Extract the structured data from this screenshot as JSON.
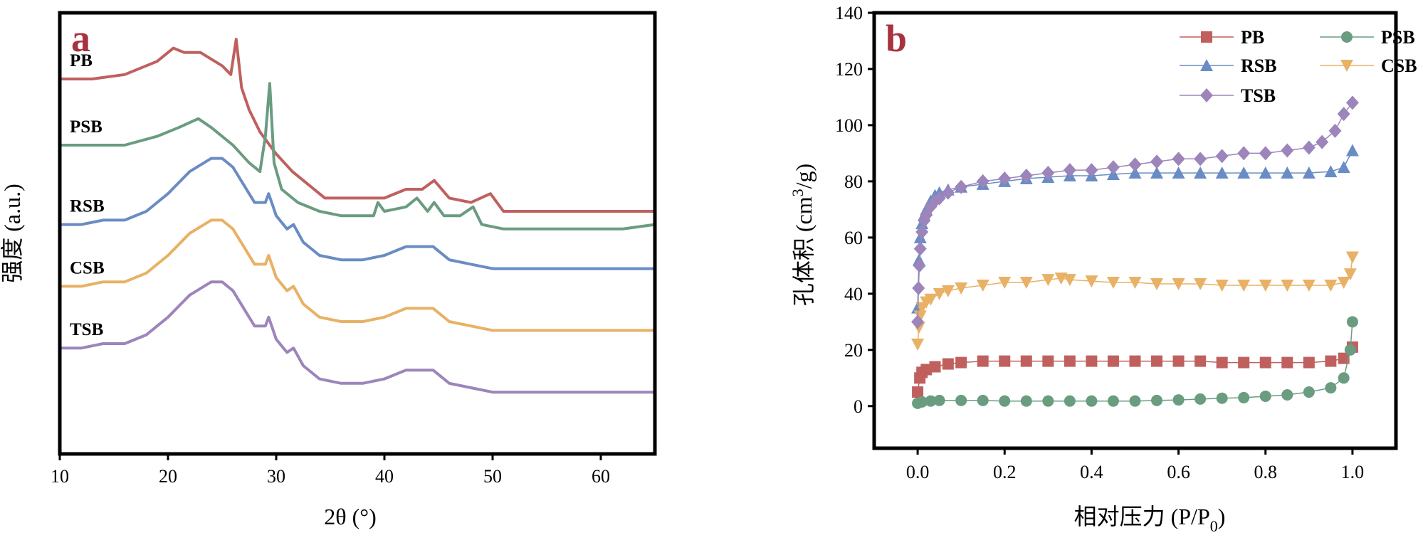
{
  "chart_data": [
    {
      "panel": "a",
      "type": "line",
      "xlabel": "2θ (°)",
      "ylabel": "强度 (a.u.)",
      "xlim": [
        10,
        65
      ],
      "x_ticks": [
        10,
        20,
        30,
        40,
        50,
        60
      ],
      "y_ticks_shown": false,
      "legend": "none",
      "note_values": "y values are relative intensity (arbitrary units), stacked by series with offsets",
      "series": [
        {
          "name": "PB",
          "color": "#c0605e",
          "x": [
            10,
            13,
            16,
            19,
            20.5,
            21.5,
            23,
            25,
            25.8,
            26.3,
            26.8,
            27.5,
            28.5,
            30,
            31.5,
            33,
            34.5,
            36,
            38,
            40,
            42,
            43.5,
            44.6,
            46,
            48,
            49.8,
            51,
            54,
            58,
            62,
            65
          ],
          "y": [
            85,
            85,
            86,
            89,
            92,
            91,
            91,
            88,
            86,
            94,
            83,
            78,
            73,
            68,
            64,
            61,
            58,
            58,
            58,
            58,
            60,
            60,
            62,
            58,
            57,
            59,
            55,
            55,
            55,
            55,
            55
          ]
        },
        {
          "name": "PSB",
          "color": "#6a9c80",
          "x": [
            10,
            13,
            16,
            19,
            21,
            22.8,
            24,
            26,
            27.5,
            28.5,
            29,
            29.4,
            29.8,
            30.5,
            32,
            34,
            36,
            37,
            39,
            39.4,
            40,
            42,
            43,
            44,
            44.6,
            45.5,
            47,
            48.2,
            49,
            51,
            55,
            58,
            62,
            65
          ],
          "y": [
            70,
            70,
            70,
            72,
            74,
            76,
            74,
            70,
            66,
            64,
            72,
            84,
            66,
            60,
            57,
            55,
            54,
            54,
            54,
            57,
            55,
            56,
            58,
            55,
            57,
            54,
            54,
            56,
            52,
            51,
            51,
            51,
            51,
            52
          ]
        },
        {
          "name": "RSB",
          "color": "#6a8cc4",
          "x": [
            10,
            12,
            14,
            16,
            18,
            20,
            22,
            24,
            25,
            26,
            27,
            28,
            29,
            29.3,
            30,
            31,
            31.6,
            32.5,
            34,
            36,
            38,
            40,
            42,
            43,
            44.5,
            46,
            48,
            50,
            53,
            56,
            60,
            65
          ],
          "y": [
            52,
            52,
            53,
            53,
            55,
            59,
            64,
            67,
            67,
            65,
            61,
            57,
            57,
            59,
            54,
            51,
            52,
            48,
            45,
            44,
            44,
            45,
            47,
            47,
            47,
            44,
            43,
            42,
            42,
            42,
            42,
            42
          ]
        },
        {
          "name": "CSB",
          "color": "#e8b165",
          "x": [
            10,
            12,
            14,
            16,
            18,
            20,
            22,
            24,
            25,
            26,
            27,
            28,
            29,
            29.3,
            30,
            31,
            31.6,
            32.5,
            34,
            36,
            38,
            40,
            42,
            43,
            44.5,
            46,
            48,
            50,
            53,
            56,
            60,
            65
          ],
          "y": [
            38,
            38,
            39,
            39,
            41,
            45,
            50,
            53,
            53,
            51,
            47,
            43,
            43,
            45,
            40,
            37,
            38,
            34,
            31,
            30,
            30,
            31,
            33,
            33,
            33,
            30,
            29,
            28,
            28,
            28,
            28,
            28
          ]
        },
        {
          "name": "TSB",
          "color": "#9c85ba",
          "x": [
            10,
            12,
            14,
            16,
            18,
            20,
            22,
            24,
            25,
            26,
            27,
            28,
            29,
            29.3,
            30,
            31,
            31.6,
            32.5,
            34,
            36,
            38,
            40,
            42,
            43,
            44.5,
            46,
            48,
            50,
            53,
            56,
            60,
            65
          ],
          "y": [
            24,
            24,
            25,
            25,
            27,
            31,
            36,
            39,
            39,
            37,
            33,
            29,
            29,
            31,
            26,
            23,
            24,
            20,
            17,
            16,
            16,
            17,
            19,
            19,
            19,
            16,
            15,
            14,
            14,
            14,
            14,
            14
          ]
        }
      ]
    },
    {
      "panel": "b",
      "type": "line",
      "xlabel": "相对压力 (P/P",
      "xlabel_sub": "0",
      "xlabel_tail": ")",
      "ylabel": "孔体积 (cm",
      "ylabel_sup": "3",
      "ylabel_tail": "/g)",
      "xlim": [
        -0.1,
        1.1
      ],
      "ylim": [
        -15,
        140
      ],
      "x_ticks": [
        "0.0",
        "0.2",
        "0.4",
        "0.6",
        "0.8",
        "1.0"
      ],
      "y_ticks": [
        0,
        20,
        40,
        60,
        80,
        100,
        120,
        140
      ],
      "legend": "top-right",
      "series": [
        {
          "name": "PB",
          "color": "#c0605e",
          "marker": "square",
          "x": [
            0.0,
            0.005,
            0.01,
            0.02,
            0.04,
            0.07,
            0.1,
            0.15,
            0.2,
            0.25,
            0.3,
            0.35,
            0.4,
            0.45,
            0.5,
            0.55,
            0.6,
            0.65,
            0.7,
            0.75,
            0.8,
            0.85,
            0.9,
            0.95,
            0.98,
            1.0
          ],
          "y": [
            5,
            10,
            12,
            13,
            14,
            15,
            15.5,
            16,
            16,
            16,
            16,
            16,
            16,
            16,
            16,
            16,
            16,
            16,
            15.5,
            15.5,
            15.5,
            15.5,
            15.5,
            16,
            17,
            21
          ]
        },
        {
          "name": "PSB",
          "color": "#6a9c80",
          "marker": "circle",
          "x": [
            0.0,
            0.01,
            0.03,
            0.05,
            0.1,
            0.15,
            0.2,
            0.25,
            0.3,
            0.35,
            0.4,
            0.45,
            0.5,
            0.55,
            0.6,
            0.65,
            0.7,
            0.75,
            0.8,
            0.85,
            0.9,
            0.95,
            0.98,
            0.995,
            1.0
          ],
          "y": [
            1,
            1.5,
            1.8,
            2,
            2,
            2,
            1.8,
            1.8,
            1.8,
            1.8,
            1.8,
            1.8,
            1.8,
            2,
            2.2,
            2.5,
            2.8,
            3,
            3.5,
            4,
            5,
            6.5,
            10,
            20,
            30
          ]
        },
        {
          "name": "RSB",
          "color": "#6a8cc4",
          "marker": "triangle-up",
          "x": [
            0.0,
            0.003,
            0.006,
            0.01,
            0.015,
            0.02,
            0.03,
            0.04,
            0.05,
            0.07,
            0.1,
            0.15,
            0.2,
            0.25,
            0.3,
            0.35,
            0.4,
            0.45,
            0.5,
            0.55,
            0.6,
            0.65,
            0.7,
            0.75,
            0.8,
            0.85,
            0.9,
            0.95,
            0.98,
            1.0
          ],
          "y": [
            35,
            52,
            60,
            65,
            68,
            70,
            73,
            75,
            76,
            77,
            78,
            79,
            80,
            81,
            81.5,
            82,
            82,
            82.5,
            83,
            83,
            83,
            83,
            83,
            83,
            83,
            83,
            83,
            83.5,
            85,
            91
          ]
        },
        {
          "name": "CSB",
          "color": "#e8b165",
          "marker": "triangle-down",
          "x": [
            0.0,
            0.003,
            0.006,
            0.01,
            0.02,
            0.03,
            0.05,
            0.07,
            0.1,
            0.15,
            0.2,
            0.25,
            0.3,
            0.33,
            0.35,
            0.4,
            0.45,
            0.5,
            0.55,
            0.6,
            0.65,
            0.7,
            0.75,
            0.8,
            0.85,
            0.9,
            0.95,
            0.98,
            0.995,
            1.0
          ],
          "y": [
            22,
            28,
            32,
            35,
            37,
            38,
            40,
            41,
            42,
            43,
            44,
            44,
            45,
            45.5,
            45,
            44.5,
            44,
            44,
            43.5,
            43.5,
            43.5,
            43,
            43,
            43,
            43,
            43,
            43,
            44,
            47,
            53
          ]
        },
        {
          "name": "TSB",
          "color": "#9c85ba",
          "marker": "diamond",
          "x": [
            0.0,
            0.002,
            0.004,
            0.006,
            0.01,
            0.015,
            0.02,
            0.03,
            0.04,
            0.05,
            0.07,
            0.1,
            0.15,
            0.2,
            0.25,
            0.3,
            0.35,
            0.4,
            0.45,
            0.5,
            0.55,
            0.6,
            0.65,
            0.7,
            0.75,
            0.8,
            0.85,
            0.9,
            0.93,
            0.96,
            0.98,
            1.0
          ],
          "y": [
            30,
            42,
            50,
            56,
            62,
            66,
            68,
            71,
            73,
            74,
            76,
            78,
            80,
            81,
            82,
            83,
            84,
            84,
            85,
            86,
            87,
            88,
            88,
            89,
            90,
            90,
            91,
            92,
            94,
            98,
            104,
            108
          ]
        }
      ]
    }
  ]
}
